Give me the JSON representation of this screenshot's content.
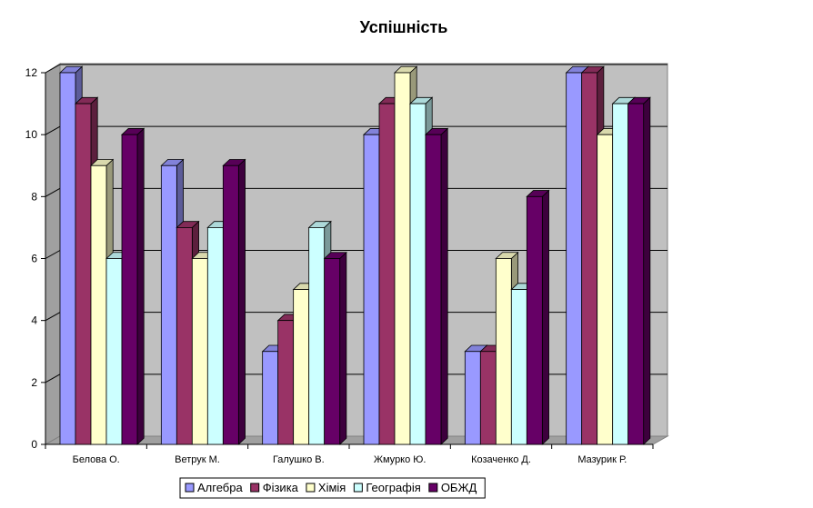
{
  "chart_data": {
    "type": "bar",
    "title": "Успішність",
    "xlabel": "",
    "ylabel": "",
    "categories": [
      "Белова О.",
      "Ветрук М.",
      "Галушко В.",
      "Жмурко Ю.",
      "Козаченко Д.",
      "Мазурик Р."
    ],
    "series": [
      {
        "name": "Алгебра",
        "values": [
          12,
          9,
          3,
          10,
          3,
          12
        ],
        "color": "#9999ff"
      },
      {
        "name": "Фізика",
        "values": [
          11,
          7,
          4,
          11,
          3,
          12
        ],
        "color": "#993366"
      },
      {
        "name": "Хімія",
        "values": [
          9,
          6,
          5,
          12,
          6,
          10
        ],
        "color": "#ffffcc"
      },
      {
        "name": "Географія",
        "values": [
          6,
          7,
          7,
          11,
          5,
          11
        ],
        "color": "#ccffff"
      },
      {
        "name": "ОБЖД",
        "values": [
          10,
          9,
          6,
          10,
          8,
          11
        ],
        "color": "#660066"
      }
    ],
    "yticks": [
      "0",
      "2",
      "4",
      "6",
      "8",
      "10",
      "12"
    ],
    "ylim": [
      0,
      12
    ],
    "grid": true,
    "legend": "bottom",
    "wall_color": "#c0c0c0"
  }
}
